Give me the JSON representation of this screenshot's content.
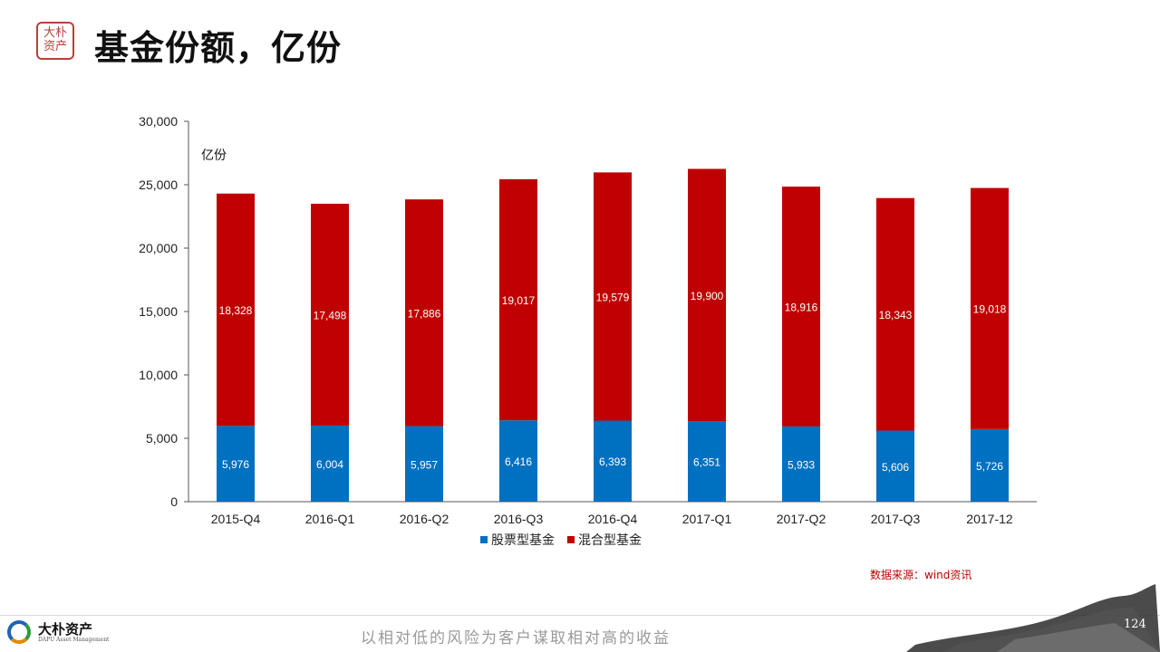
{
  "header": {
    "seal_text": "大朴 资产",
    "title": "基金份额，亿份"
  },
  "chart_data": {
    "type": "bar",
    "stacked": true,
    "unit_label": "亿份",
    "categories": [
      "2015-Q4",
      "2016-Q1",
      "2016-Q2",
      "2016-Q3",
      "2016-Q4",
      "2017-Q1",
      "2017-Q2",
      "2017-Q3",
      "2017-12"
    ],
    "series": [
      {
        "name": "股票型基金",
        "color": "#0070c0",
        "values": [
          5976,
          6004,
          5957,
          6416,
          6393,
          6351,
          5933,
          5606,
          5726
        ],
        "labels": [
          "5,976",
          "6,004",
          "5,957",
          "6,416",
          "6,393",
          "6,351",
          "5,933",
          "5,606",
          "5,726"
        ]
      },
      {
        "name": "混合型基金",
        "color": "#c00000",
        "values": [
          18328,
          17498,
          17886,
          19017,
          19579,
          19900,
          18916,
          18343,
          19018
        ],
        "labels": [
          "18,328",
          "17,498",
          "17,886",
          "19,017",
          "19,579",
          "19,900",
          "18,916",
          "18,343",
          "19,018"
        ]
      }
    ],
    "ylim": [
      0,
      30000
    ],
    "yticks": [
      0,
      5000,
      10000,
      15000,
      20000,
      25000,
      30000
    ],
    "ytick_labels": [
      "0",
      "5,000",
      "10,000",
      "15,000",
      "20,000",
      "25,000",
      "30,000"
    ],
    "legend_position": "bottom",
    "grid": false
  },
  "source_note": "数据来源：wind资讯",
  "footer": {
    "company_name": "大朴资产",
    "company_sub": "DAPU Asset Management",
    "slogan": "以相对低的风险为客户谋取相对高的收益",
    "page_number": "124"
  }
}
